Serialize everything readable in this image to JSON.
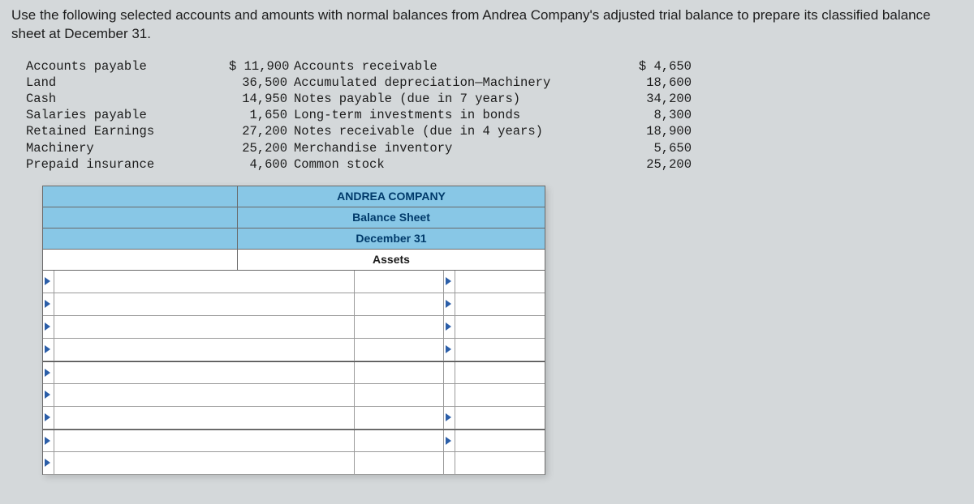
{
  "instruction": "Use the following selected accounts and amounts with normal balances from Andrea Company's adjusted trial balance to prepare its classified balance sheet at December 31.",
  "trial_balance": {
    "rows": [
      {
        "name1": "Accounts payable",
        "amt1": "$ 11,900",
        "name2": "Accounts receivable",
        "amt2": "$ 4,650"
      },
      {
        "name1": "Land",
        "amt1": "36,500",
        "name2": "Accumulated depreciation—Machinery",
        "amt2": "18,600"
      },
      {
        "name1": "Cash",
        "amt1": "14,950",
        "name2": "Notes payable (due in 7 years)",
        "amt2": "34,200"
      },
      {
        "name1": "Salaries payable",
        "amt1": "1,650",
        "name2": "Long-term investments in bonds",
        "amt2": "8,300"
      },
      {
        "name1": "Retained Earnings",
        "amt1": "27,200",
        "name2": "Notes receivable (due in 4 years)",
        "amt2": "18,900"
      },
      {
        "name1": "Machinery",
        "amt1": "25,200",
        "name2": "Merchandise inventory",
        "amt2": "5,650"
      },
      {
        "name1": "Prepaid insurance",
        "amt1": "4,600",
        "name2": "Common stock",
        "amt2": "25,200"
      }
    ]
  },
  "sheet": {
    "company": "ANDREA COMPANY",
    "title": "Balance Sheet",
    "date": "December 31",
    "section1": "Assets",
    "colors": {
      "header_bg": "#88c7e6",
      "header_text": "#003a6a",
      "page_bg": "#d4d8da",
      "grid_border": "#9a9a9a",
      "marker": "#2b5ea8"
    }
  }
}
